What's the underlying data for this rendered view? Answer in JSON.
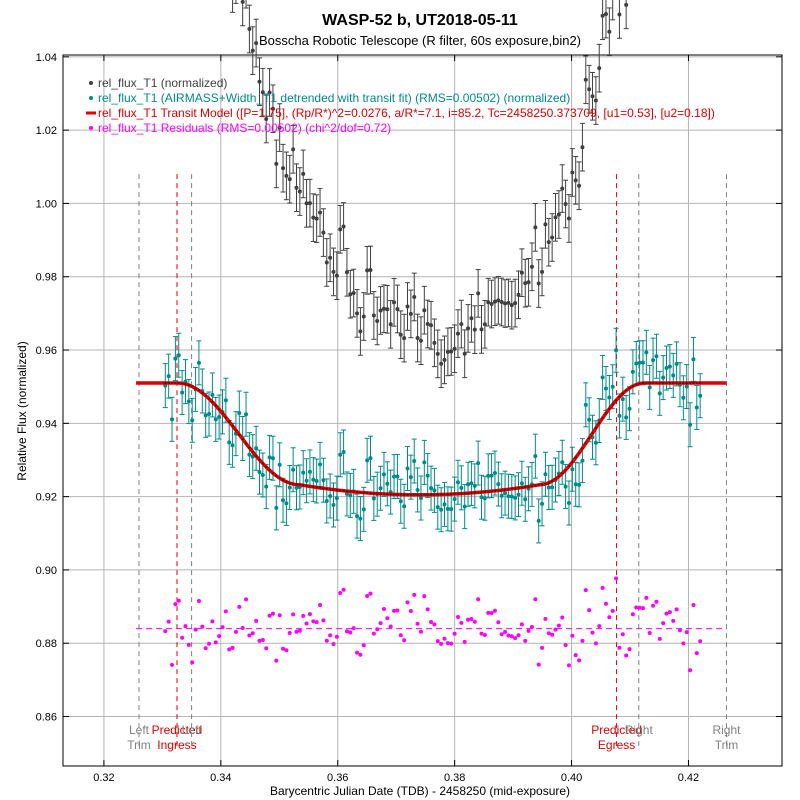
{
  "chart_data": {
    "type": "scatter",
    "title": "WASP-52 b, UT2018-05-11",
    "subtitle": "Bosscha Robotic Telescope (R filter, 60s exposure,bin2)",
    "xlabel": "Barycentric Julian Date (TDB) - 2458250 (mid-exposure)",
    "ylabel": "Relative Flux (normalized)",
    "xlim": [
      0.313,
      0.436
    ],
    "ylim": [
      0.8465,
      1.0405
    ],
    "xticks": [
      0.32,
      0.34,
      0.36,
      0.38,
      0.4,
      0.42
    ],
    "xtick_labels": [
      "0.32",
      "0.34",
      "0.36",
      "0.38",
      "0.40",
      "0.42"
    ],
    "yticks": [
      0.86,
      0.88,
      0.9,
      0.92,
      0.94,
      0.96,
      0.98,
      1.0,
      1.02,
      1.04
    ],
    "ytick_labels": [
      "0.86",
      "0.88",
      "0.90",
      "0.92",
      "0.94",
      "0.96",
      "0.98",
      "1.00",
      "1.02",
      "1.04"
    ],
    "grid": true,
    "legend_position": "top-left",
    "series": [
      {
        "name": "rel_flux_T1 (normalized)",
        "color": "#404040",
        "kind": "points_errorbars"
      },
      {
        "name": "rel_flux_T1 (AIRMASS+Width_T1 detrended with transit fit) (RMS=0.00502) (normalized)",
        "color": "#008b8b",
        "kind": "points_errorbars"
      },
      {
        "name": "rel_flux_T1 Transit Model ([P=1.75], (Rp/R*)^2=0.0276, a/R*=7.1, i=85.2, Tc=2458250.373709, [u1=0.53], [u2=0.18])",
        "color": "#e00000",
        "kind": "line"
      },
      {
        "name": "rel_flux_T1 Residuals (RMS=0.00502) (chi^2/dof=0.72)",
        "color": "#ff00ff",
        "kind": "points"
      }
    ],
    "model_params": {
      "baseline": 0.951,
      "depth": 0.0305,
      "t_ingress_start": 0.3326,
      "t_ingress_end": 0.3535,
      "t_egress_start": 0.3945,
      "t_egress_end": 0.4125,
      "t_start": 0.3255,
      "t_end": 0.4265
    },
    "residual_baseline": 0.884,
    "data_x_range": [
      0.3305,
      0.422
    ],
    "points_count": 160,
    "raw_error": 0.0065,
    "detrended_error": 0.006,
    "vertical_markers": [
      {
        "x": 0.326,
        "color": "#808080",
        "labels": [
          "Left",
          "Trim"
        ],
        "label_color": "#808080"
      },
      {
        "x": 0.3325,
        "color": "#e00000",
        "labels": [
          "Predicted",
          "Ingress"
        ],
        "label_color": "#e00000"
      },
      {
        "x": 0.335,
        "color": "#808080",
        "labels": [
          "Left"
        ],
        "label_color": "#808080"
      },
      {
        "x": 0.4077,
        "color": "#e00000",
        "labels": [
          "Predicted",
          "Egress"
        ],
        "label_color": "#e00000"
      },
      {
        "x": 0.4115,
        "color": "#808080",
        "labels": [
          "Right"
        ],
        "label_color": "#808080"
      },
      {
        "x": 0.4265,
        "color": "#808080",
        "labels": [
          "Right",
          "Trim"
        ],
        "label_color": "#808080"
      }
    ]
  }
}
